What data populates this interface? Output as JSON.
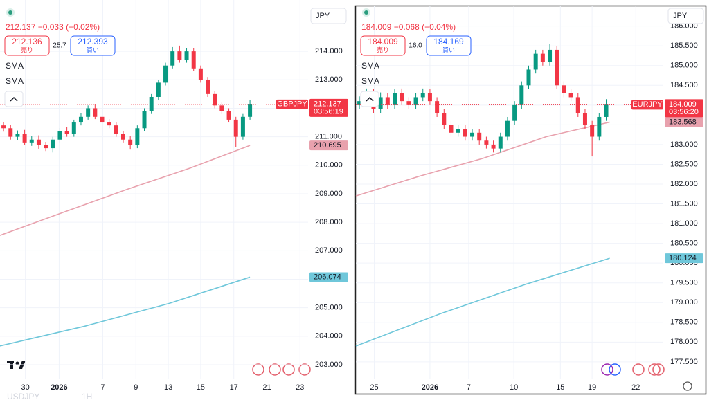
{
  "chart_data": [
    {
      "type": "candlestick",
      "symbol": "GBPJPY",
      "currency": "JPY",
      "quote": "212.137 −0.033 (−0.02%)",
      "sell_price": "212.136",
      "sell_label": "売り",
      "spread": "25.7",
      "buy_price": "212.393",
      "buy_label": "買い",
      "countdown": "03:56:19",
      "up_color": "#089981",
      "down_color": "#f23645",
      "grid": true,
      "open": [
        211.4,
        211.3,
        211.0,
        211.1,
        210.8,
        210.9,
        210.7,
        210.6,
        210.9,
        211.2,
        211.1,
        211.5,
        211.7,
        212.0,
        211.7,
        211.5,
        211.4,
        211.1,
        210.9,
        210.7,
        211.3,
        211.9,
        212.4,
        212.9,
        213.5,
        214.0,
        213.7,
        214.0,
        213.4,
        213.0,
        212.5,
        212.1,
        211.9,
        211.6,
        211.0,
        211.7
      ],
      "high": [
        211.52,
        211.42,
        211.22,
        211.24,
        211.02,
        211.05,
        210.82,
        211.0,
        211.31,
        211.35,
        211.6,
        211.82,
        212.1,
        212.15,
        211.8,
        211.62,
        211.5,
        211.2,
        211.02,
        211.4,
        212.0,
        212.5,
        213.0,
        213.6,
        214.15,
        214.2,
        214.12,
        214.1,
        213.5,
        213.1,
        212.6,
        212.2,
        212.0,
        211.7,
        211.8,
        212.3
      ],
      "low": [
        211.18,
        210.9,
        210.88,
        210.7,
        210.68,
        210.58,
        210.5,
        210.45,
        210.8,
        211.0,
        211.0,
        211.4,
        211.6,
        211.62,
        211.4,
        211.3,
        211.0,
        210.8,
        210.55,
        210.6,
        211.2,
        211.8,
        212.3,
        212.8,
        213.4,
        213.6,
        213.6,
        213.3,
        212.9,
        212.4,
        212.0,
        211.8,
        211.5,
        210.65,
        210.9,
        211.6
      ],
      "close": [
        211.3,
        211.0,
        211.1,
        210.8,
        210.9,
        210.7,
        210.6,
        210.9,
        211.2,
        211.1,
        211.5,
        211.7,
        212.0,
        211.7,
        211.5,
        211.4,
        211.1,
        210.9,
        210.7,
        211.3,
        211.9,
        212.4,
        212.9,
        213.5,
        214.0,
        213.7,
        214.0,
        213.4,
        213.0,
        212.5,
        212.1,
        211.9,
        211.6,
        211.0,
        211.7,
        212.137
      ],
      "series": [
        {
          "name": "SMA",
          "color": "#e8a1ad",
          "x": [
            0,
            9,
            18,
            27,
            35.5
          ],
          "values": [
            207.54,
            208.35,
            209.15,
            209.9,
            210.695
          ]
        },
        {
          "name": "SMA",
          "color": "#6fc7da",
          "x": [
            0,
            12,
            24,
            35.5
          ],
          "values": [
            203.66,
            204.35,
            205.15,
            206.074
          ]
        }
      ],
      "xlim": [
        0,
        43.75
      ],
      "xticks": [
        {
          "value": 3.6,
          "label": "30"
        },
        {
          "value": 8.4,
          "label": "2026"
        },
        {
          "value": 14.6,
          "label": "7"
        },
        {
          "value": 19.3,
          "label": "9"
        },
        {
          "value": 23.9,
          "label": "13"
        },
        {
          "value": 28.5,
          "label": "15"
        },
        {
          "value": 33.2,
          "label": "17"
        },
        {
          "value": 37.9,
          "label": "21"
        },
        {
          "value": 42.6,
          "label": "23"
        }
      ],
      "ylim": [
        202.49,
        215.8
      ],
      "yticks": [
        {
          "value": 203,
          "label": "203.000"
        },
        {
          "value": 204,
          "label": "204.000"
        },
        {
          "value": 205,
          "label": "205.000"
        },
        {
          "value": 206,
          "label": "206.000"
        },
        {
          "value": 207,
          "label": "207.000"
        },
        {
          "value": 208,
          "label": "208.000"
        },
        {
          "value": 209,
          "label": "209.000"
        },
        {
          "value": 210,
          "label": "210.000"
        },
        {
          "value": 211,
          "label": "211.000"
        },
        {
          "value": 212,
          "label": "212.000"
        },
        {
          "value": 213,
          "label": "213.000"
        },
        {
          "value": 214,
          "label": "214.000"
        }
      ]
    },
    {
      "type": "candlestick",
      "symbol": "EURJPY",
      "currency": "JPY",
      "quote": "184.009 −0.068 (−0.04%)",
      "sell_price": "184.009",
      "sell_label": "売り",
      "spread": "16.0",
      "buy_price": "184.169",
      "buy_label": "買い",
      "countdown": "03:56:20",
      "up_color": "#089981",
      "down_color": "#f23645",
      "grid": true,
      "open": [
        184.0,
        184.1,
        184.3,
        183.9,
        184.2,
        184.0,
        184.3,
        184.1,
        184.0,
        184.2,
        184.3,
        184.1,
        183.8,
        183.5,
        183.3,
        183.4,
        183.2,
        183.3,
        183.1,
        183.0,
        182.9,
        183.2,
        183.6,
        184.0,
        184.5,
        184.9,
        185.3,
        185.1,
        185.4,
        184.5,
        184.3,
        184.2,
        183.8,
        183.5,
        183.2,
        183.7
      ],
      "high": [
        184.22,
        184.42,
        184.4,
        184.32,
        184.3,
        184.4,
        184.42,
        184.2,
        184.3,
        184.42,
        184.4,
        184.2,
        183.9,
        183.6,
        183.5,
        183.5,
        183.4,
        183.4,
        183.2,
        183.1,
        183.3,
        183.7,
        184.1,
        184.6,
        185.0,
        185.4,
        185.4,
        185.55,
        185.5,
        184.6,
        184.4,
        184.3,
        183.9,
        183.6,
        183.8,
        184.15
      ],
      "low": [
        183.9,
        184.0,
        183.8,
        183.8,
        183.9,
        183.9,
        184.0,
        183.9,
        183.9,
        184.1,
        184.0,
        183.7,
        183.4,
        183.2,
        183.2,
        183.1,
        183.1,
        183.0,
        182.9,
        182.8,
        182.8,
        183.1,
        183.5,
        183.9,
        184.4,
        184.8,
        185.0,
        185.0,
        184.4,
        184.2,
        184.1,
        183.7,
        183.4,
        182.7,
        183.1,
        183.6
      ],
      "close": [
        184.1,
        184.3,
        183.9,
        184.2,
        184.0,
        184.3,
        184.1,
        184.0,
        184.2,
        184.3,
        184.1,
        183.8,
        183.5,
        183.3,
        183.4,
        183.2,
        183.3,
        183.1,
        183.0,
        182.9,
        183.2,
        183.6,
        184.0,
        184.5,
        184.9,
        185.3,
        185.1,
        185.4,
        184.5,
        184.3,
        184.2,
        183.8,
        183.5,
        183.2,
        183.7,
        184.009
      ],
      "series": [
        {
          "name": "SMA",
          "color": "#e8a1ad",
          "x": [
            0,
            9,
            18,
            27,
            36
          ],
          "values": [
            181.7,
            182.2,
            182.65,
            183.2,
            183.568
          ]
        },
        {
          "name": "SMA",
          "color": "#6fc7da",
          "x": [
            0,
            12,
            24,
            36
          ],
          "values": [
            177.9,
            178.72,
            179.46,
            180.124
          ]
        }
      ],
      "xlim": [
        0,
        43.6
      ],
      "xticks": [
        {
          "value": 2.6,
          "label": "25"
        },
        {
          "value": 10.5,
          "label": "2026"
        },
        {
          "value": 16.0,
          "label": "7"
        },
        {
          "value": 22.4,
          "label": "10"
        },
        {
          "value": 29.0,
          "label": "15"
        },
        {
          "value": 33.5,
          "label": "19"
        },
        {
          "value": 39.7,
          "label": "22"
        }
      ],
      "ylim": [
        177.06,
        186.52
      ],
      "yticks": [
        {
          "value": 177.5,
          "label": "177.500"
        },
        {
          "value": 178,
          "label": "178.000"
        },
        {
          "value": 178.5,
          "label": "178.500"
        },
        {
          "value": 179,
          "label": "179.000"
        },
        {
          "value": 179.5,
          "label": "179.500"
        },
        {
          "value": 180,
          "label": "180.000"
        },
        {
          "value": 180.5,
          "label": "180.500"
        },
        {
          "value": 181,
          "label": "181.000"
        },
        {
          "value": 181.5,
          "label": "181.500"
        },
        {
          "value": 182,
          "label": "182.000"
        },
        {
          "value": 182.5,
          "label": "182.500"
        },
        {
          "value": 183,
          "label": "183.000"
        },
        {
          "value": 183.5,
          "label": "183.500"
        },
        {
          "value": 184,
          "label": "184.000"
        },
        {
          "value": 184.5,
          "label": "184.500"
        },
        {
          "value": 185,
          "label": "185.000"
        },
        {
          "value": 185.5,
          "label": "185.500"
        },
        {
          "value": 186,
          "label": "186.000"
        }
      ]
    }
  ],
  "footer": {
    "symbol": "USDJPY",
    "interval": "1H"
  }
}
